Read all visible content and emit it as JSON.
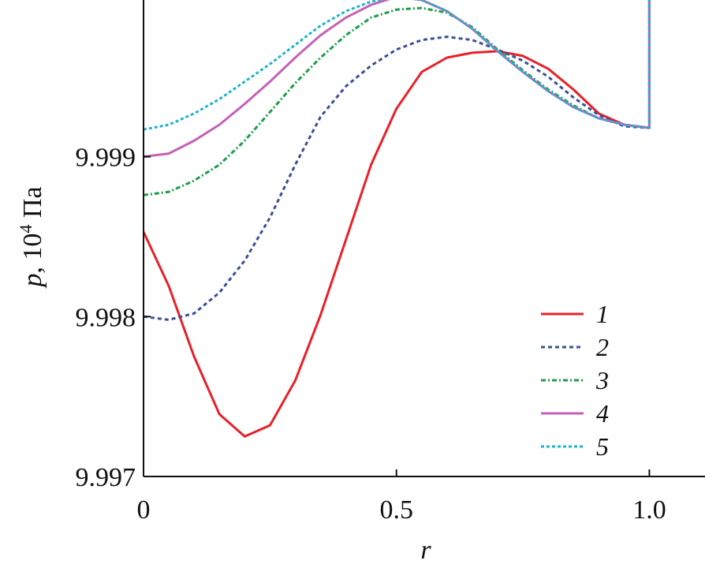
{
  "chart_data": {
    "type": "line",
    "xlabel": "r",
    "ylabel_symbol": "p",
    "ylabel_sep": ", ",
    "ylabel_base": "10",
    "ylabel_exp": "4",
    "ylabel_unit": " Па",
    "xlim": [
      0,
      1.11
    ],
    "ylim": [
      9.997,
      9.99998
    ],
    "xticks": [
      {
        "value": 0,
        "label": "0"
      },
      {
        "value": 0.5,
        "label": "0.5"
      },
      {
        "value": 1.0,
        "label": "1.0"
      }
    ],
    "yticks": [
      {
        "value": 9.997,
        "label": "9.997"
      },
      {
        "value": 9.998,
        "label": "9.998"
      },
      {
        "value": 9.999,
        "label": "9.999"
      }
    ],
    "legend_position": "bottom-right",
    "series": [
      {
        "name": "1",
        "color": "#e8202a",
        "dash": "",
        "x": [
          0,
          0.05,
          0.1,
          0.15,
          0.2,
          0.25,
          0.3,
          0.35,
          0.4,
          0.45,
          0.5,
          0.55,
          0.6,
          0.65,
          0.7,
          0.75,
          0.8,
          0.85,
          0.9,
          0.95,
          1.0,
          1.0,
          1.11
        ],
        "y": [
          9.99853,
          9.99819,
          9.99775,
          9.99739,
          9.99725,
          9.99732,
          9.9976,
          9.99801,
          9.99848,
          9.99895,
          9.9993,
          9.99953,
          9.99962,
          9.99965,
          9.99966,
          9.99963,
          9.99955,
          9.99942,
          9.99927,
          9.9992,
          9.99918,
          10.0,
          10.0
        ]
      },
      {
        "name": "2",
        "color": "#3a4f9a",
        "dash": "5 4",
        "x": [
          0,
          0.05,
          0.1,
          0.15,
          0.2,
          0.25,
          0.3,
          0.35,
          0.4,
          0.45,
          0.5,
          0.55,
          0.6,
          0.65,
          0.7,
          0.75,
          0.8,
          0.85,
          0.9,
          0.95,
          1.0,
          1.0,
          1.11
        ],
        "y": [
          9.998,
          9.99798,
          9.99802,
          9.99815,
          9.99835,
          9.99862,
          9.99895,
          9.99925,
          9.99944,
          9.99957,
          9.99967,
          9.99973,
          9.99975,
          9.99973,
          9.99967,
          9.9996,
          9.9995,
          9.99937,
          9.99926,
          9.99919,
          9.99918,
          10.0,
          10.0
        ]
      },
      {
        "name": "3",
        "color": "#1f9e4a",
        "dash": "6 3 2 3",
        "x": [
          0,
          0.05,
          0.1,
          0.15,
          0.2,
          0.25,
          0.3,
          0.35,
          0.4,
          0.45,
          0.5,
          0.55,
          0.6,
          0.65,
          0.7,
          0.75,
          0.8,
          0.85,
          0.9,
          0.95,
          1.0,
          1.0,
          1.11
        ],
        "y": [
          9.99876,
          9.99878,
          9.99885,
          9.99895,
          9.9991,
          9.99928,
          9.99946,
          9.99962,
          9.99976,
          9.99987,
          9.99992,
          9.99993,
          9.9999,
          9.99981,
          9.99967,
          9.99954,
          9.99942,
          9.99932,
          9.99924,
          9.9992,
          9.99918,
          10.0,
          10.0
        ]
      },
      {
        "name": "4",
        "color": "#c561b6",
        "dash": "",
        "x": [
          0,
          0.05,
          0.1,
          0.15,
          0.2,
          0.25,
          0.3,
          0.35,
          0.4,
          0.45,
          0.5,
          0.55,
          0.6,
          0.65,
          0.7,
          0.75,
          0.8,
          0.85,
          0.9,
          0.95,
          1.0,
          1.0,
          1.11
        ],
        "y": [
          9.999,
          9.99902,
          9.9991,
          9.9992,
          9.99933,
          9.99947,
          9.99962,
          9.99976,
          9.99987,
          9.99995,
          10.0,
          9.99998,
          9.99991,
          9.9998,
          9.99966,
          9.99953,
          9.99941,
          9.99931,
          9.99924,
          9.9992,
          9.99918,
          10.0,
          10.0
        ]
      },
      {
        "name": "5",
        "color": "#1eb4cf",
        "dash": "4 3",
        "x": [
          0,
          0.05,
          0.1,
          0.15,
          0.2,
          0.25,
          0.3,
          0.35,
          0.4,
          0.45,
          0.5,
          0.55,
          0.6,
          0.65,
          0.7,
          0.75,
          0.8,
          0.85,
          0.9,
          0.95,
          1.0,
          1.0,
          1.11
        ],
        "y": [
          9.99917,
          9.9992,
          9.99927,
          9.99936,
          9.99947,
          9.99958,
          9.9997,
          9.99982,
          9.99991,
          9.99997,
          10.0,
          9.99998,
          9.99991,
          9.9998,
          9.99966,
          9.99953,
          9.99941,
          9.99931,
          9.99924,
          9.9992,
          9.99918,
          10.0,
          10.0
        ]
      }
    ]
  }
}
